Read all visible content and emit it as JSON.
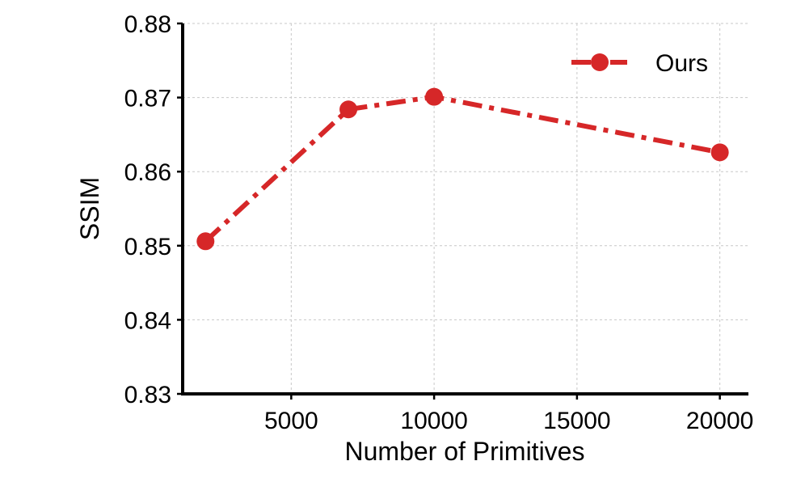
{
  "chart_data": {
    "type": "line",
    "title": "",
    "xlabel": "Number of Primitives",
    "ylabel": "SSIM",
    "xlim": [
      1200,
      21000
    ],
    "ylim": [
      0.83,
      0.88
    ],
    "xticks": [
      5000,
      10000,
      15000,
      20000
    ],
    "xtick_labels": [
      "5000",
      "10000",
      "15000",
      "20000"
    ],
    "yticks": [
      0.83,
      0.84,
      0.85,
      0.86,
      0.87,
      0.88
    ],
    "ytick_labels": [
      "0.83",
      "0.84",
      "0.85",
      "0.86",
      "0.87",
      "0.88"
    ],
    "grid": true,
    "legend_position": "top-right",
    "series": [
      {
        "name": "Ours",
        "color": "#d62728",
        "line_style": "dash-dot",
        "marker": "circle",
        "x": [
          2000,
          7000,
          10000,
          20000
        ],
        "y": [
          0.8506,
          0.8684,
          0.8701,
          0.8626
        ]
      }
    ]
  }
}
